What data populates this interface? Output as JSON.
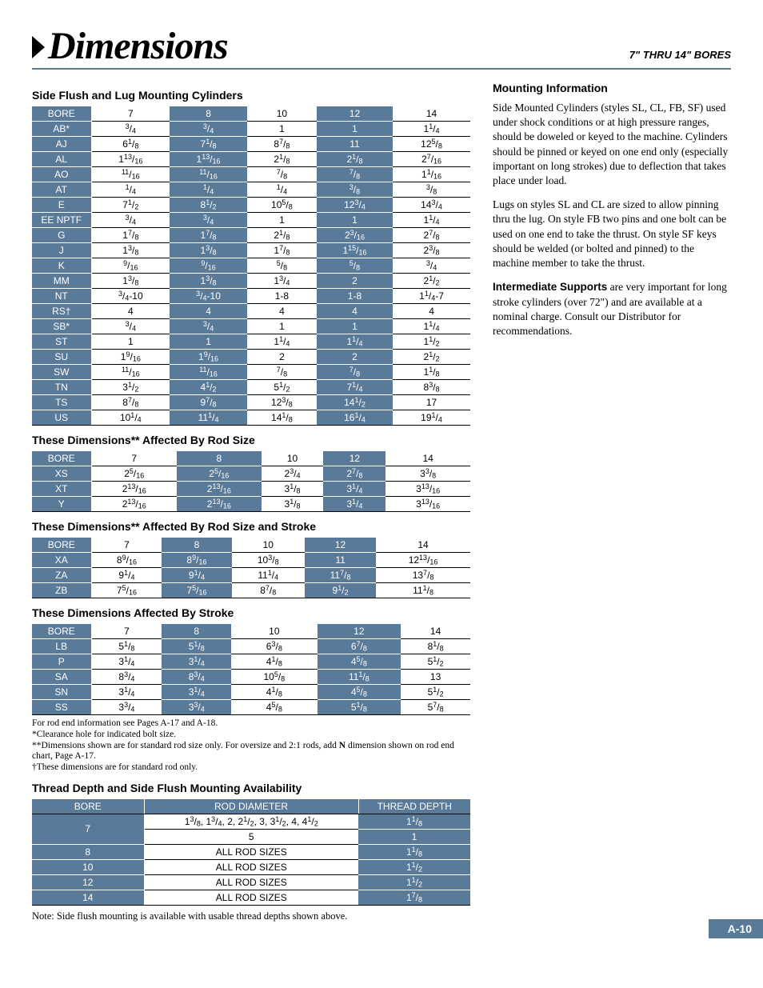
{
  "page": {
    "title": "Dimensions",
    "subtitle": "7\" THRU 14\" BORES",
    "tab": "A-10"
  },
  "table1": {
    "heading": "Side Flush and Lug Mounting Cylinders",
    "bores": [
      "7",
      "8",
      "10",
      "12",
      "14"
    ],
    "shade_cols": [
      1,
      3
    ],
    "rows": [
      {
        "k": "BORE",
        "v": [
          "7",
          "8",
          "10",
          "12",
          "14"
        ],
        "header": true
      },
      {
        "k": "AB*",
        "v": [
          "3/4",
          "3/4",
          "1",
          "1",
          "1 1/4"
        ]
      },
      {
        "k": "AJ",
        "v": [
          "6 1/8",
          "7 1/8",
          "8 7/8",
          "11",
          "12 5/8"
        ]
      },
      {
        "k": "AL",
        "v": [
          "1 13/16",
          "1 13/16",
          "2 1/8",
          "2 1/8",
          "2 7/16"
        ]
      },
      {
        "k": "AO",
        "v": [
          "11/16",
          "11/16",
          "7/8",
          "7/8",
          "1 1/16"
        ]
      },
      {
        "k": "AT",
        "v": [
          "1/4",
          "1/4",
          "1/4",
          "3/8",
          "3/8"
        ]
      },
      {
        "k": "E",
        "v": [
          "7 1/2",
          "8 1/2",
          "10 5/8",
          "12 3/4",
          "14 3/4"
        ]
      },
      {
        "k": "EE NPTF",
        "v": [
          "3/4",
          "3/4",
          "1",
          "1",
          "1 1/4"
        ]
      },
      {
        "k": "G",
        "v": [
          "1 7/8",
          "1 7/8",
          "2 1/8",
          "2 3/16",
          "2 7/8"
        ]
      },
      {
        "k": "J",
        "v": [
          "1 3/8",
          "1 3/8",
          "1 7/8",
          "1 15/16",
          "2 3/8"
        ]
      },
      {
        "k": "K",
        "v": [
          "9/16",
          "9/16",
          "5/8",
          "5/8",
          "3/4"
        ]
      },
      {
        "k": "MM",
        "v": [
          "1 3/8",
          "1 3/8",
          "1 3/4",
          "2",
          "2 1/2"
        ]
      },
      {
        "k": "NT",
        "v": [
          "3/4-10",
          "3/4-10",
          "1-8",
          "1-8",
          "1 1/4-7"
        ]
      },
      {
        "k": "RS†",
        "v": [
          "4",
          "4",
          "4",
          "4",
          "4"
        ]
      },
      {
        "k": "SB*",
        "v": [
          "3/4",
          "3/4",
          "1",
          "1",
          "1 1/4"
        ]
      },
      {
        "k": "ST",
        "v": [
          "1",
          "1",
          "1 1/4",
          "1 1/4",
          "1 1/2"
        ]
      },
      {
        "k": "SU",
        "v": [
          "1 9/16",
          "1 9/16",
          "2",
          "2",
          "2 1/2"
        ]
      },
      {
        "k": "SW",
        "v": [
          "11/16",
          "11/16",
          "7/8",
          "7/8",
          "1 1/8"
        ]
      },
      {
        "k": "TN",
        "v": [
          "3 1/2",
          "4 1/2",
          "5 1/2",
          "7 1/4",
          "8 3/8"
        ]
      },
      {
        "k": "TS",
        "v": [
          "8 7/8",
          "9 7/8",
          "12 3/8",
          "14 1/2",
          "17"
        ]
      },
      {
        "k": "US",
        "v": [
          "10 1/4",
          "11 1/4",
          "14 1/8",
          "16 1/4",
          "19 1/4"
        ]
      }
    ]
  },
  "table2": {
    "heading": "These Dimensions** Affected By Rod Size",
    "shade_cols": [
      1,
      3
    ],
    "rows": [
      {
        "k": "BORE",
        "v": [
          "7",
          "8",
          "10",
          "12",
          "14"
        ],
        "header": true
      },
      {
        "k": "XS",
        "v": [
          "2 5/16",
          "2 5/16",
          "2 3/4",
          "2 7/8",
          "3 3/8"
        ]
      },
      {
        "k": "XT",
        "v": [
          "2 13/16",
          "2 13/16",
          "3 1/8",
          "3 1/4",
          "3 13/16"
        ]
      },
      {
        "k": "Y",
        "v": [
          "2 13/16",
          "2 13/16",
          "3 1/8",
          "3 1/4",
          "3 13/16"
        ]
      }
    ]
  },
  "table3": {
    "heading": "These Dimensions** Affected By Rod Size and Stroke",
    "shade_cols": [
      1,
      3
    ],
    "rows": [
      {
        "k": "BORE",
        "v": [
          "7",
          "8",
          "10",
          "12",
          "14"
        ],
        "header": true
      },
      {
        "k": "XA",
        "v": [
          "8 9/16",
          "8 9/16",
          "10 3/8",
          "11",
          "12 13/16"
        ]
      },
      {
        "k": "ZA",
        "v": [
          "9 1/4",
          "9 1/4",
          "11 1/4",
          "11 7/8",
          "13 7/8"
        ]
      },
      {
        "k": "ZB",
        "v": [
          "7 5/16",
          "7 5/16",
          "8 7/8",
          "9 1/2",
          "11 1/8"
        ]
      }
    ]
  },
  "table4": {
    "heading": "These Dimensions Affected By Stroke",
    "shade_cols": [
      1,
      3
    ],
    "rows": [
      {
        "k": "BORE",
        "v": [
          "7",
          "8",
          "10",
          "12",
          "14"
        ],
        "header": true
      },
      {
        "k": "LB",
        "v": [
          "5 1/8",
          "5 1/8",
          "6 3/8",
          "6 7/8",
          "8 1/8"
        ]
      },
      {
        "k": "P",
        "v": [
          "3 1/4",
          "3 1/4",
          "4 1/8",
          "4 5/8",
          "5 1/2"
        ]
      },
      {
        "k": "SA",
        "v": [
          "8 3/4",
          "8 3/4",
          "10 5/8",
          "11 1/8",
          "13"
        ]
      },
      {
        "k": "SN",
        "v": [
          "3 1/4",
          "3 1/4",
          "4 1/8",
          "4 5/8",
          "5 1/2"
        ]
      },
      {
        "k": "SS",
        "v": [
          "3 3/4",
          "3 3/4",
          "4 5/8",
          "5 1/8",
          "5 7/8"
        ]
      }
    ]
  },
  "footnotes": [
    "For rod end information see Pages A-17 and A-18.",
    "*Clearance hole for indicated bolt size.",
    "**Dimensions shown are for standard rod size only. For oversize and 2:1 rods, add N dimension shown on rod end chart, Page A-17.",
    "†These dimensions are for standard rod only."
  ],
  "table5": {
    "heading": "Thread Depth and Side Flush Mounting Availability",
    "headers": [
      "BORE",
      "ROD DIAMETER",
      "THREAD DEPTH"
    ],
    "rows": [
      {
        "bore": "7",
        "rod": "1 3/8, 1 3/4, 2, 2 1/2, 3, 3 1/2, 4, 4 1/2",
        "depth": "1 1/8",
        "rowspan": 2
      },
      {
        "bore": "",
        "rod": "5",
        "depth": "1"
      },
      {
        "bore": "8",
        "rod": "ALL ROD SIZES",
        "depth": "1 1/8"
      },
      {
        "bore": "10",
        "rod": "ALL ROD SIZES",
        "depth": "1 1/2"
      },
      {
        "bore": "12",
        "rod": "ALL ROD SIZES",
        "depth": "1 1/2"
      },
      {
        "bore": "14",
        "rod": "ALL ROD SIZES",
        "depth": "1 7/8"
      }
    ],
    "note": "Note: Side flush mounting is available with usable thread depths shown above."
  },
  "right": {
    "heading": "Mounting Information",
    "p1": "Side Mounted Cylinders (styles SL, CL, FB, SF) used under shock conditions or at high pressure ranges, should be doweled or keyed to the machine. Cylinders should be pinned or keyed on one end only (especially important on long strokes) due to deflection that takes place under load.",
    "p2": "Lugs on styles SL and CL are sized to allow pinning thru the lug. On style FB two pins and one bolt can be used on one end to take the thrust. On style SF keys should be welded (or bolted and pinned) to the machine member to take the thrust.",
    "p3_lead": "Intermediate Supports",
    "p3_rest": " are very important for long stroke cylinders (over 72\") and are available at a nominal charge. Consult our Distributor for recommendations."
  }
}
